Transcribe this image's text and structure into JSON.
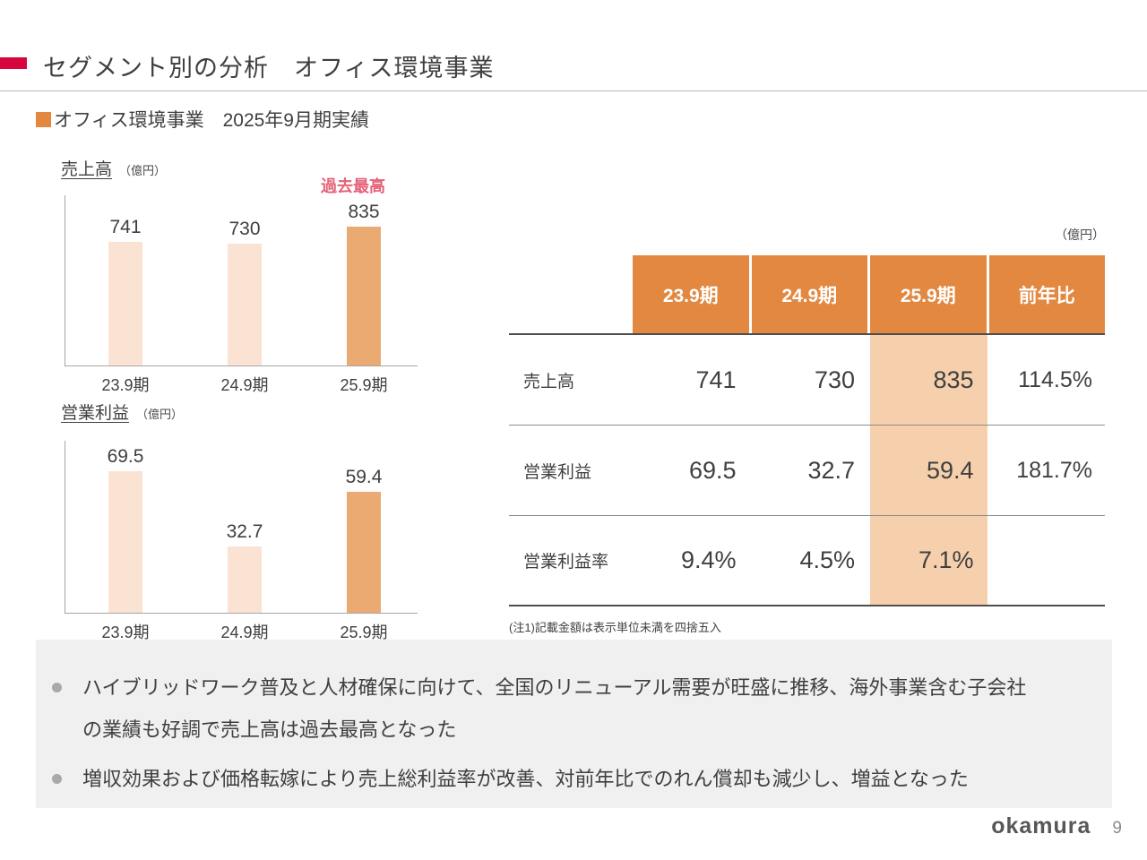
{
  "slide": {
    "title": "セグメント別の分析　オフィス環境事業",
    "subtitle": "オフィス環境事業　2025年9月期実績",
    "logo_text": "okamura",
    "page_number": "9"
  },
  "colors": {
    "accent_red": "#d7063f",
    "header_orange": "#e28840",
    "bar_light_peach": "#fae3d2",
    "bar_dark_peach": "#ecaa73",
    "highlight_band": "#f6d0ac",
    "annotation_pink": "#e5637a",
    "summary_box_gray": "#f0f0f0"
  },
  "chart_data": [
    {
      "type": "bar",
      "title": "売上高",
      "unit": "（億円）",
      "categories": [
        "23.9期",
        "24.9期",
        "25.9期"
      ],
      "values": [
        741,
        730,
        835
      ],
      "labels": [
        "741",
        "730",
        "835"
      ],
      "annotation": "過去最高",
      "highlight_index": 2,
      "ylim": [
        0,
        900
      ],
      "grid": false,
      "legend": "none"
    },
    {
      "type": "bar",
      "title": "営業利益",
      "unit": "（億円）",
      "categories": [
        "23.9期",
        "24.9期",
        "25.9期"
      ],
      "values": [
        69.5,
        32.7,
        59.4
      ],
      "labels": [
        "69.5",
        "32.7",
        "59.4"
      ],
      "annotation": "",
      "highlight_index": 2,
      "ylim": [
        0,
        75
      ],
      "grid": false,
      "legend": "none"
    }
  ],
  "table": {
    "unit_label": "（億円）",
    "columns": [
      "23.9期",
      "24.9期",
      "25.9期",
      "前年比"
    ],
    "highlight_column": 2,
    "rows": [
      {
        "label": "売上高",
        "values": [
          "741",
          "730",
          "835",
          "114.5%"
        ]
      },
      {
        "label": "営業利益",
        "values": [
          "69.5",
          "32.7",
          "59.4",
          "181.7%"
        ]
      },
      {
        "label": "営業利益率",
        "values": [
          "9.4%",
          "4.5%",
          "7.1%",
          ""
        ]
      }
    ],
    "note": "(注1)記載金額は表示単位未満を四捨五入"
  },
  "summary": {
    "bullets": [
      {
        "lines": [
          "ハイブリッドワーク普及と人材確保に向けて、全国のリニューアル需要が旺盛に推移、海外事業含む子会社",
          "の業績も好調で売上高は過去最高となった"
        ]
      },
      {
        "lines": [
          "増収効果および価格転嫁により売上総利益率が改善、対前年比でのれん償却も減少し、増益となった"
        ]
      }
    ]
  }
}
